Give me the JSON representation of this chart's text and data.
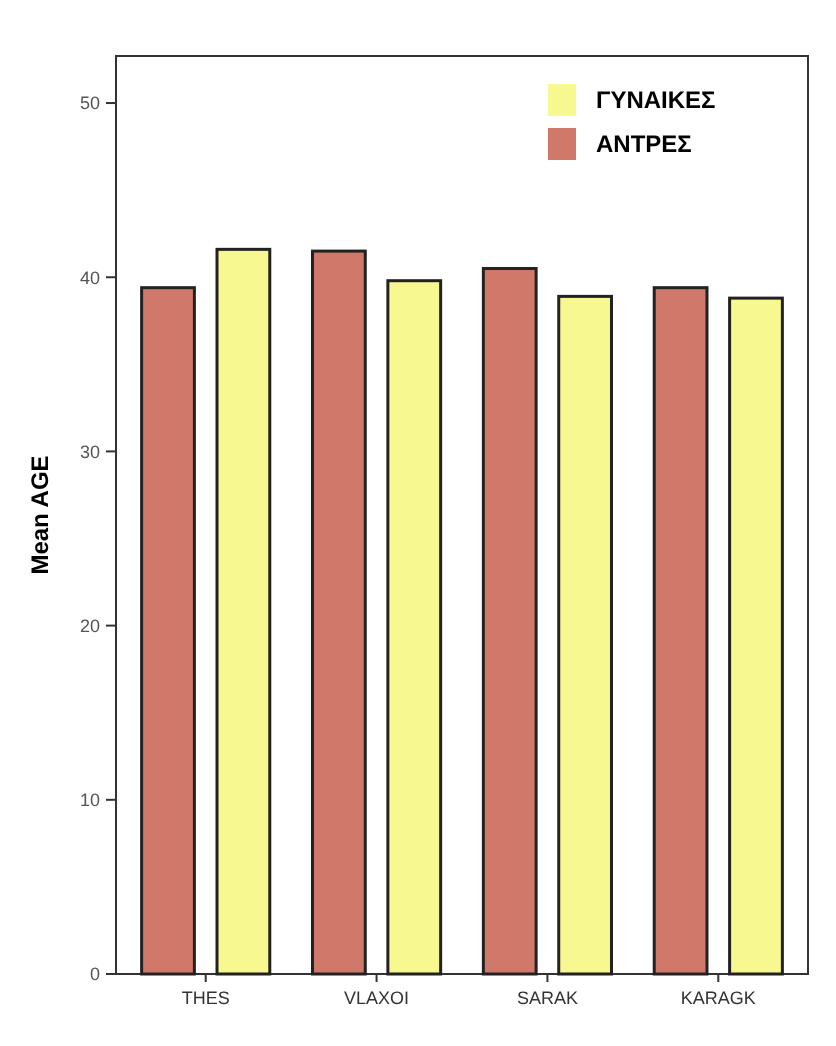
{
  "chart_data": {
    "type": "bar",
    "ylabel": "Mean AGE",
    "categories": [
      "THES",
      "VLAXOI",
      "SARAK",
      "KARAGK"
    ],
    "series": [
      {
        "name": "ΑΝΤΡΕΣ",
        "color": "#d0786a",
        "values": [
          39.4,
          41.5,
          40.5,
          39.4
        ]
      },
      {
        "name": "ΓΥΝΑΙΚΕΣ",
        "color": "#f8f890",
        "values": [
          41.6,
          39.8,
          38.9,
          38.8
        ]
      }
    ],
    "ylim": [
      0,
      52.7
    ],
    "yticks": [
      0,
      10,
      20,
      30,
      40,
      50
    ],
    "grid": false,
    "legend": "top right"
  }
}
